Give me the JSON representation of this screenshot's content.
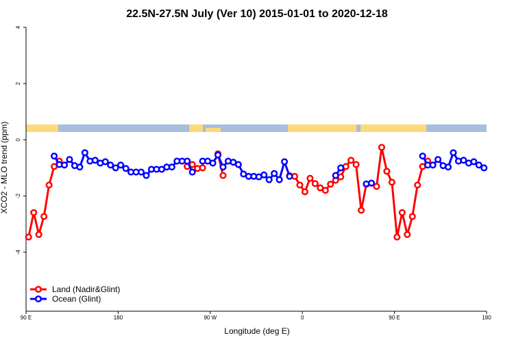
{
  "chart_data": {
    "type": "line",
    "title": "22.5N-27.5N July (Ver 10)   2015-01-01 to 2020-12-18",
    "x_label": "Longitude (deg E)",
    "y_label": "XCO2 - MLO trend (ppm)",
    "xlim": [
      90,
      540
    ],
    "ylim": [
      -6.1,
      4
    ],
    "xticks": [
      {
        "value": 90,
        "label": "90 E"
      },
      180,
      {
        "value": 270,
        "label": "90 W"
      },
      {
        "value": 360,
        "label": "0"
      },
      {
        "value": 450,
        "label": "90 E"
      },
      {
        "value": 540,
        "label": "180"
      }
    ],
    "yticks": [
      4,
      2,
      0,
      -2,
      -4
    ],
    "legend": "bottom-left",
    "x": [
      92.5,
      97.5,
      102.5,
      107.5,
      112.5,
      117.5,
      122.5,
      127.5,
      132.5,
      137.5,
      142.5,
      147.5,
      152.5,
      157.5,
      162.5,
      167.5,
      172.5,
      177.5,
      182.5,
      187.5,
      192.5,
      197.5,
      202.5,
      207.5,
      212.5,
      217.5,
      222.5,
      227.5,
      232.5,
      237.5,
      242.5,
      247.5,
      252.5,
      257.5,
      262.5,
      267.5,
      272.5,
      277.5,
      282.5,
      287.5,
      292.5,
      297.5,
      302.5,
      307.5,
      312.5,
      317.5,
      322.5,
      327.5,
      332.5,
      337.5,
      342.5,
      347.5,
      352.5,
      357.5,
      362.5,
      367.5,
      372.5,
      377.5,
      382.5,
      387.5,
      392.5,
      397.5,
      402.5,
      407.5,
      412.5,
      417.5,
      422.5,
      427.5,
      432.5,
      437.5,
      442.5,
      447.5,
      452.5,
      457.5,
      462.5,
      467.5,
      472.5,
      477.5,
      482.5,
      487.5,
      492.5,
      497.5,
      502.5,
      507.5,
      512.5,
      517.5,
      522.5,
      527.5,
      532.5,
      537.5
    ],
    "series": [
      {
        "name": "Land (Nadir&Glint)",
        "color": "#ff0000",
        "values": [
          -3.46,
          -2.59,
          -3.37,
          -2.73,
          -1.61,
          -0.95,
          -0.76,
          null,
          null,
          null,
          null,
          null,
          null,
          null,
          null,
          null,
          null,
          null,
          null,
          null,
          null,
          null,
          null,
          null,
          null,
          null,
          null,
          null,
          null,
          null,
          null,
          -0.95,
          -0.88,
          -1.02,
          -1.0,
          null,
          null,
          -0.5,
          -1.27,
          null,
          null,
          null,
          null,
          null,
          null,
          null,
          null,
          null,
          null,
          null,
          null,
          -1.28,
          -1.3,
          -1.61,
          -1.85,
          -1.37,
          -1.56,
          -1.71,
          -1.8,
          -1.58,
          -1.44,
          -1.32,
          -0.95,
          -0.73,
          -0.88,
          -2.51,
          -1.58,
          -1.54,
          -1.66,
          -0.27,
          -1.12,
          -1.51,
          -3.46,
          -2.59,
          -3.37,
          -2.73,
          -1.61,
          -0.95,
          -0.76,
          null,
          null,
          null,
          null,
          null,
          null,
          null,
          null,
          null,
          null,
          null
        ]
      },
      {
        "name": "Ocean (Glint)",
        "color": "#0000ff",
        "values": [
          null,
          null,
          null,
          null,
          null,
          -0.58,
          -0.88,
          -0.9,
          -0.7,
          -0.92,
          -0.97,
          -0.46,
          -0.76,
          -0.73,
          -0.83,
          -0.78,
          -0.9,
          -1.0,
          -0.9,
          -1.02,
          -1.15,
          -1.15,
          -1.15,
          -1.27,
          -1.05,
          -1.05,
          -1.05,
          -0.97,
          -0.97,
          -0.76,
          -0.76,
          -0.76,
          -1.15,
          null,
          -0.76,
          -0.76,
          -0.83,
          -0.54,
          -0.97,
          -0.76,
          -0.8,
          -0.88,
          -1.22,
          -1.3,
          -1.3,
          -1.32,
          -1.25,
          -1.42,
          -1.2,
          -1.42,
          -0.78,
          -1.3,
          null,
          null,
          null,
          null,
          null,
          null,
          null,
          null,
          -1.27,
          -1.0,
          null,
          null,
          null,
          null,
          -1.57,
          -1.54,
          null,
          null,
          null,
          null,
          null,
          null,
          null,
          null,
          null,
          -0.58,
          -0.9,
          -0.9,
          -0.7,
          -0.92,
          -0.97,
          -0.46,
          -0.76,
          -0.73,
          -0.83,
          -0.78,
          -0.9,
          -1.0
        ]
      }
    ]
  }
}
